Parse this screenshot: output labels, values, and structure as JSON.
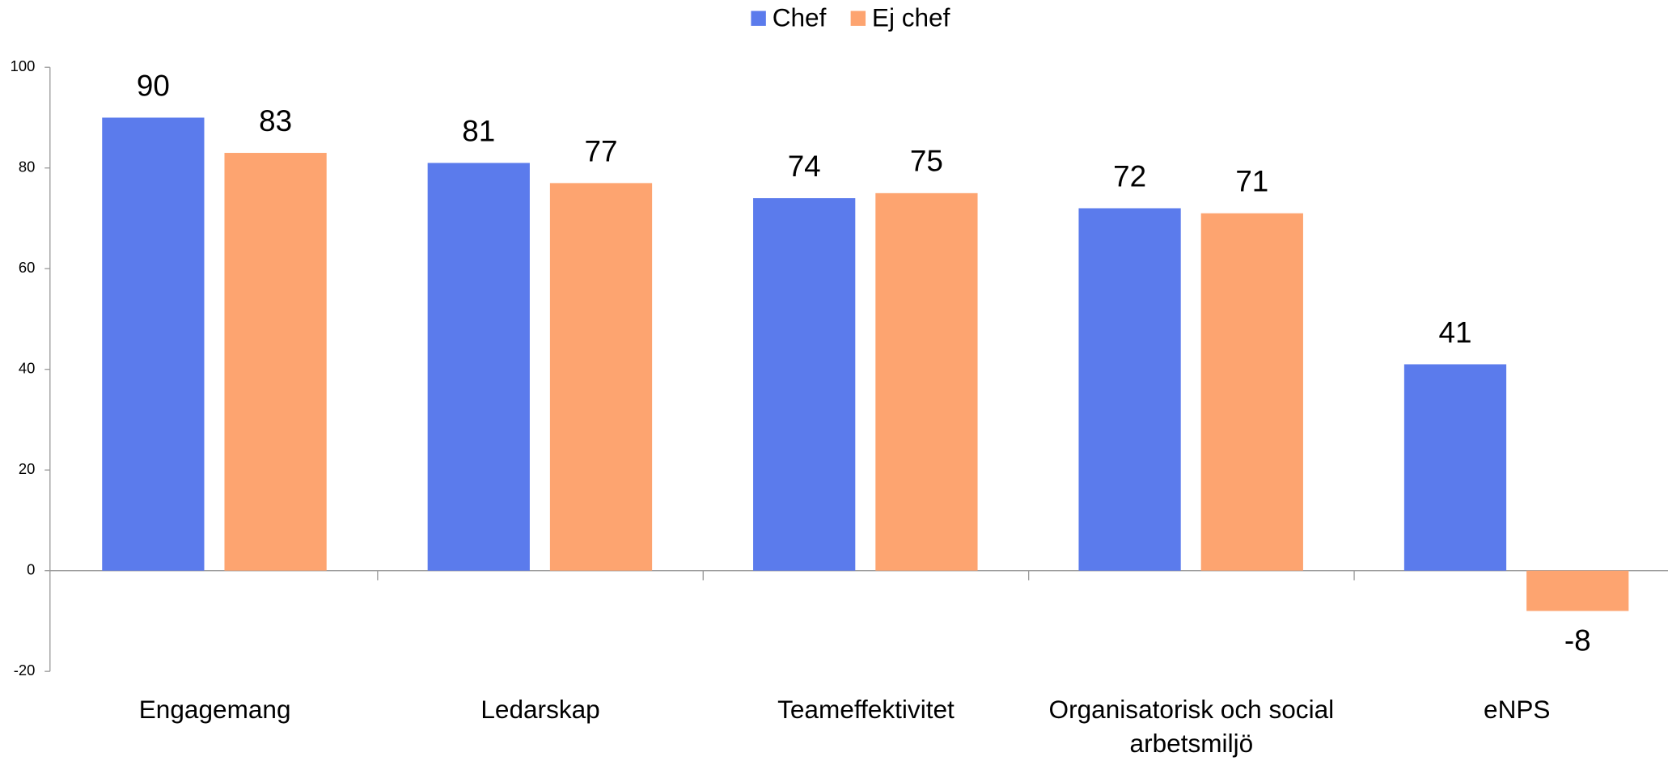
{
  "chart_data": {
    "type": "bar",
    "categories": [
      "Engagemang",
      "Ledarskap",
      "Teameffektivitet",
      "Organisatorisk och social arbetsmiljö",
      "eNPS"
    ],
    "series": [
      {
        "name": "Chef",
        "color": "#5b7bec",
        "values": [
          90,
          81,
          74,
          72,
          41
        ]
      },
      {
        "name": "Ej chef",
        "color": "#fda470",
        "values": [
          83,
          77,
          75,
          71,
          -8
        ]
      }
    ],
    "ylim": [
      -20,
      100
    ],
    "yticks": [
      -20,
      0,
      20,
      40,
      60,
      80,
      100
    ],
    "legend": "top"
  }
}
